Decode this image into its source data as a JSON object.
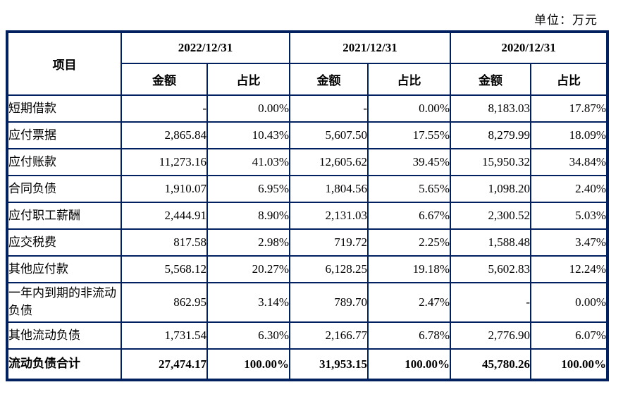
{
  "unit_label": "单位：万元",
  "colors": {
    "border": "#002060",
    "text": "#000000",
    "background": "#ffffff"
  },
  "table": {
    "item_header": "项目",
    "col_groups": [
      {
        "date": "2022/12/31"
      },
      {
        "date": "2021/12/31"
      },
      {
        "date": "2020/12/31"
      }
    ],
    "sub_headers": {
      "amount": "金额",
      "ratio": "占比"
    },
    "rows": [
      {
        "label": "短期借款",
        "cells": [
          "-",
          "0.00%",
          "-",
          "0.00%",
          "8,183.03",
          "17.87%"
        ]
      },
      {
        "label": "应付票据",
        "cells": [
          "2,865.84",
          "10.43%",
          "5,607.50",
          "17.55%",
          "8,279.99",
          "18.09%"
        ]
      },
      {
        "label": "应付账款",
        "cells": [
          "11,273.16",
          "41.03%",
          "12,605.62",
          "39.45%",
          "15,950.32",
          "34.84%"
        ]
      },
      {
        "label": "合同负债",
        "cells": [
          "1,910.07",
          "6.95%",
          "1,804.56",
          "5.65%",
          "1,098.20",
          "2.40%"
        ]
      },
      {
        "label": "应付职工薪酬",
        "cells": [
          "2,444.91",
          "8.90%",
          "2,131.03",
          "6.67%",
          "2,300.52",
          "5.03%"
        ]
      },
      {
        "label": "应交税费",
        "cells": [
          "817.58",
          "2.98%",
          "719.72",
          "2.25%",
          "1,588.48",
          "3.47%"
        ]
      },
      {
        "label": "其他应付款",
        "cells": [
          "5,568.12",
          "20.27%",
          "6,128.25",
          "19.18%",
          "5,602.83",
          "12.24%"
        ]
      },
      {
        "label": "一年内到期的非流动负债",
        "cells": [
          "862.95",
          "3.14%",
          "789.70",
          "2.47%",
          "-",
          "0.00%"
        ],
        "tall": true
      },
      {
        "label": "其他流动负债",
        "cells": [
          "1,731.54",
          "6.30%",
          "2,166.77",
          "6.78%",
          "2,776.90",
          "6.07%"
        ]
      },
      {
        "label": "流动负债合计",
        "cells": [
          "27,474.17",
          "100.00%",
          "31,953.15",
          "100.00%",
          "45,780.26",
          "100.00%"
        ],
        "total": true
      }
    ]
  }
}
